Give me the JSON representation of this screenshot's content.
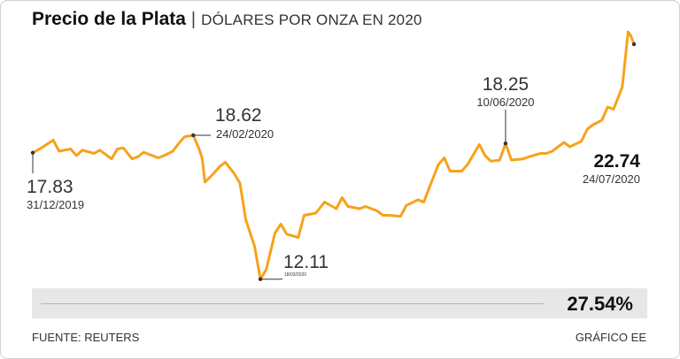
{
  "header": {
    "title": "Precio de la Plata",
    "separator": "|",
    "subtitle": "DÓLARES POR ONZA EN 2020"
  },
  "colors": {
    "line": "#f7a21b",
    "marker": "#333333",
    "bar_bg": "#e7e7e7"
  },
  "chart_data": {
    "type": "line",
    "title": "Precio de la Plata",
    "subtitle": "DÓLARES POR ONZA EN 2020",
    "xlabel": "",
    "ylabel": "",
    "x_range": [
      "2019-12-31",
      "2020-07-24"
    ],
    "y_range": [
      11.5,
      24.5
    ],
    "grid": false,
    "legend": "none",
    "series": [
      {
        "values": [
          [
            "2019-12-31",
            17.83
          ],
          [
            "2020-01-03",
            18.05
          ],
          [
            "2020-01-07",
            18.4
          ],
          [
            "2020-01-09",
            17.9
          ],
          [
            "2020-01-13",
            18.0
          ],
          [
            "2020-01-15",
            17.7
          ],
          [
            "2020-01-17",
            17.95
          ],
          [
            "2020-01-21",
            17.8
          ],
          [
            "2020-01-23",
            17.95
          ],
          [
            "2020-01-27",
            17.55
          ],
          [
            "2020-01-29",
            18.0
          ],
          [
            "2020-01-31",
            18.05
          ],
          [
            "2020-02-03",
            17.55
          ],
          [
            "2020-02-05",
            17.65
          ],
          [
            "2020-02-07",
            17.85
          ],
          [
            "2020-02-10",
            17.7
          ],
          [
            "2020-02-12",
            17.6
          ],
          [
            "2020-02-14",
            17.7
          ],
          [
            "2020-02-17",
            17.9
          ],
          [
            "2020-02-19",
            18.25
          ],
          [
            "2020-02-21",
            18.55
          ],
          [
            "2020-02-24",
            18.62
          ],
          [
            "2020-02-26",
            18.0
          ],
          [
            "2020-02-27",
            17.6
          ],
          [
            "2020-02-28",
            16.5
          ],
          [
            "2020-03-02",
            16.9
          ],
          [
            "2020-03-04",
            17.2
          ],
          [
            "2020-03-06",
            17.4
          ],
          [
            "2020-03-09",
            16.9
          ],
          [
            "2020-03-11",
            16.45
          ],
          [
            "2020-03-13",
            14.8
          ],
          [
            "2020-03-16",
            13.6
          ],
          [
            "2020-03-18",
            12.11
          ],
          [
            "2020-03-20",
            12.55
          ],
          [
            "2020-03-23",
            14.2
          ],
          [
            "2020-03-25",
            14.6
          ],
          [
            "2020-03-27",
            14.15
          ],
          [
            "2020-03-31",
            14.0
          ],
          [
            "2020-04-02",
            15.0
          ],
          [
            "2020-04-06",
            15.1
          ],
          [
            "2020-04-09",
            15.6
          ],
          [
            "2020-04-13",
            15.3
          ],
          [
            "2020-04-15",
            15.8
          ],
          [
            "2020-04-17",
            15.4
          ],
          [
            "2020-04-21",
            15.3
          ],
          [
            "2020-04-23",
            15.4
          ],
          [
            "2020-04-27",
            15.2
          ],
          [
            "2020-04-29",
            15.0
          ],
          [
            "2020-05-01",
            15.0
          ],
          [
            "2020-05-05",
            14.95
          ],
          [
            "2020-05-07",
            15.45
          ],
          [
            "2020-05-11",
            15.7
          ],
          [
            "2020-05-13",
            15.6
          ],
          [
            "2020-05-15",
            16.3
          ],
          [
            "2020-05-18",
            17.3
          ],
          [
            "2020-05-20",
            17.6
          ],
          [
            "2020-05-22",
            17.0
          ],
          [
            "2020-05-26",
            17.0
          ],
          [
            "2020-05-28",
            17.3
          ],
          [
            "2020-06-01",
            18.2
          ],
          [
            "2020-06-03",
            17.7
          ],
          [
            "2020-06-05",
            17.45
          ],
          [
            "2020-06-08",
            17.5
          ],
          [
            "2020-06-10",
            18.25
          ],
          [
            "2020-06-12",
            17.5
          ],
          [
            "2020-06-16",
            17.55
          ],
          [
            "2020-06-18",
            17.65
          ],
          [
            "2020-06-22",
            17.8
          ],
          [
            "2020-06-24",
            17.8
          ],
          [
            "2020-06-26",
            17.9
          ],
          [
            "2020-06-30",
            18.3
          ],
          [
            "2020-07-02",
            18.1
          ],
          [
            "2020-07-06",
            18.35
          ],
          [
            "2020-07-08",
            18.9
          ],
          [
            "2020-07-10",
            19.1
          ],
          [
            "2020-07-13",
            19.3
          ],
          [
            "2020-07-15",
            19.9
          ],
          [
            "2020-07-17",
            19.8
          ],
          [
            "2020-07-20",
            20.8
          ],
          [
            "2020-07-22",
            23.3
          ],
          [
            "2020-07-23",
            23.1
          ],
          [
            "2020-07-24",
            22.74
          ]
        ]
      }
    ],
    "annotations": [
      {
        "value": "17.83",
        "date": "31/12/2019",
        "x": "2019-12-31",
        "y": 17.83
      },
      {
        "value": "18.62",
        "date": "24/02/2020",
        "x": "2020-02-24",
        "y": 18.62
      },
      {
        "value": "12.11",
        "date": "18/03/2020",
        "x": "2020-03-18",
        "y": 12.11
      },
      {
        "value": "18.25",
        "date": "10/06/2020",
        "x": "2020-06-10",
        "y": 18.25
      },
      {
        "value": "22.74",
        "date": "24/07/2020",
        "x": "2020-07-24",
        "y": 22.74
      }
    ],
    "change_percent": "27.54%"
  },
  "footer": {
    "source": "FUENTE: REUTERS",
    "credit": "GRÁFICO EE"
  }
}
